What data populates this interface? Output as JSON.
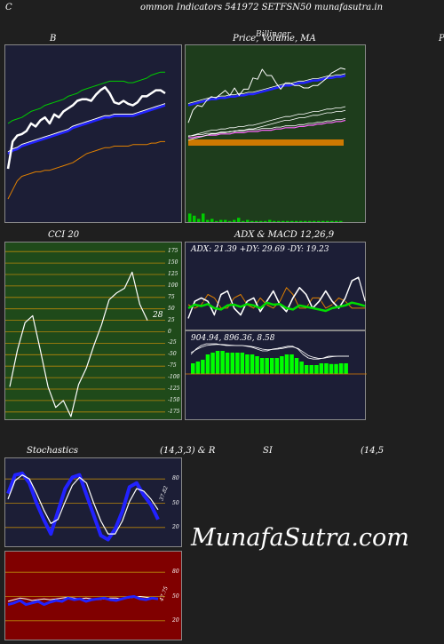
{
  "header": {
    "left": "C",
    "title": "ommon  Indicators 541972  SETFSN50  munafasutra.in"
  },
  "panels": {
    "bollinger": {
      "title": "B"
    },
    "price": {
      "title": "Price,  Volume,  MA",
      "overlay": "Billinger",
      "right_edge": "P"
    },
    "cci": {
      "title": "CCI 20",
      "badge": "28"
    },
    "adx_macd": {
      "title": "ADX  & MACD 12,26,9",
      "adx_label": "ADX: 21.39  +DY: 29.69 -DY: 19.23",
      "macd_label": "904.94,  896.36,  8.58"
    },
    "stoch": {
      "title_left": "Stochastics",
      "title_mid": "(14,3,3) & R",
      "badge": "37.82"
    },
    "rsi": {
      "title": "SI",
      "params": "(14,5",
      "badge": "47.75"
    }
  },
  "watermark": "MunafaSutra.com",
  "colors": {
    "panel_navy": "#1c1e36",
    "panel_green": "#1e3d1c",
    "panel_cci": "#1f4a1a",
    "panel_red": "#800000",
    "orange": "#e08000",
    "blue": "#2222ff",
    "green": "#00cc00"
  },
  "chart_data": [
    {
      "type": "line",
      "name": "Bollinger",
      "series": [
        {
          "name": "upper",
          "values": [
            60,
            62,
            63,
            64,
            66,
            68,
            69,
            70,
            72,
            73,
            74,
            75,
            76,
            78,
            79,
            80,
            82,
            83,
            84,
            85,
            86,
            87,
            88,
            88,
            88,
            88,
            87,
            87,
            88,
            89,
            90,
            92,
            93,
            94,
            94
          ]
        },
        {
          "name": "middle",
          "values": [
            40,
            42,
            43,
            45,
            46,
            47,
            48,
            49,
            50,
            51,
            52,
            53,
            54,
            55,
            57,
            58,
            59,
            60,
            61,
            62,
            63,
            64,
            64,
            65,
            65,
            65,
            65,
            65,
            66,
            67,
            68,
            69,
            70,
            71,
            72
          ]
        },
        {
          "name": "lower",
          "values": [
            10,
            16,
            22,
            25,
            26,
            27,
            28,
            28,
            29,
            29,
            30,
            31,
            32,
            33,
            34,
            36,
            38,
            40,
            41,
            42,
            43,
            44,
            44,
            45,
            45,
            45,
            45,
            46,
            46,
            46,
            46,
            47,
            47,
            48,
            48
          ]
        },
        {
          "name": "price",
          "values": [
            30,
            48,
            52,
            53,
            55,
            60,
            58,
            62,
            64,
            60,
            66,
            64,
            68,
            70,
            72,
            75,
            76,
            76,
            75,
            79,
            82,
            84,
            80,
            74,
            73,
            75,
            73,
            72,
            74,
            78,
            78,
            80,
            82,
            82,
            80
          ]
        }
      ],
      "ylim": [
        0,
        100
      ]
    },
    {
      "type": "line",
      "name": "Price, Volume, MA",
      "series": [
        {
          "name": "price",
          "values": [
            52,
            62,
            66,
            65,
            70,
            73,
            72,
            75,
            78,
            74,
            80,
            74,
            79,
            79,
            88,
            87,
            95,
            90,
            90,
            84,
            79,
            84,
            84,
            82,
            82,
            80,
            80,
            82,
            82,
            85,
            88,
            92,
            94,
            96,
            95
          ]
        },
        {
          "name": "ma_short",
          "values": [
            66,
            67,
            68,
            69,
            70,
            71,
            71,
            72,
            72,
            73,
            73,
            74,
            74,
            75,
            75,
            76,
            77,
            78,
            79,
            80,
            81,
            82,
            82,
            83,
            84,
            84,
            85,
            86,
            86,
            87,
            88,
            88,
            89,
            89,
            90
          ]
        },
        {
          "name": "ma_mid",
          "values": [
            71,
            71,
            72,
            72,
            73,
            73,
            73,
            73,
            73,
            73,
            73,
            73,
            73,
            73,
            73,
            73,
            73,
            73,
            73,
            73,
            73,
            73,
            73,
            73,
            73,
            73,
            73,
            73,
            73,
            73,
            73,
            73,
            73,
            73,
            73
          ]
        },
        {
          "name": "ma_long",
          "values": [
            40,
            40,
            41,
            41,
            42,
            42,
            42,
            43,
            43,
            43,
            44,
            44,
            44,
            45,
            45,
            45,
            46,
            46,
            46,
            47,
            47,
            48,
            48,
            48,
            49,
            49,
            50,
            50,
            51,
            51,
            52,
            52,
            53,
            53,
            54
          ]
        },
        {
          "name": "volume",
          "values": [
            8,
            6,
            3,
            8,
            2,
            3,
            1,
            2,
            2,
            1,
            2,
            4,
            1,
            2,
            1,
            1,
            1,
            1,
            2,
            1,
            1,
            1,
            1,
            1,
            1,
            1,
            1,
            1,
            1,
            1,
            1,
            1,
            1,
            1,
            1
          ]
        }
      ],
      "ylim": [
        0,
        100
      ]
    },
    {
      "type": "line",
      "name": "CCI 20",
      "series": [
        {
          "name": "cci",
          "values": [
            -120,
            -40,
            20,
            35,
            -40,
            -120,
            -165,
            -150,
            -185,
            -115,
            -80,
            -30,
            15,
            70,
            85,
            95,
            130,
            60,
            25
          ]
        }
      ],
      "yticks": [
        175,
        150,
        125,
        100,
        75,
        50,
        25,
        0,
        -25,
        -50,
        -75,
        -100,
        -125,
        -150,
        -175
      ],
      "ylim": [
        -185,
        185
      ]
    },
    {
      "type": "line",
      "name": "ADX",
      "series": [
        {
          "name": "adx",
          "values": [
            30,
            35,
            33,
            36,
            30,
            28,
            34,
            35,
            32,
            36,
            34,
            30,
            38,
            35,
            36,
            30,
            28,
            34,
            32,
            30,
            28,
            26,
            30,
            32,
            34,
            38,
            36,
            33
          ]
        },
        {
          "name": "plus_di",
          "values": [
            15,
            40,
            45,
            40,
            20,
            50,
            55,
            30,
            20,
            40,
            45,
            25,
            40,
            55,
            35,
            25,
            45,
            60,
            50,
            30,
            40,
            55,
            40,
            30,
            45,
            70,
            75,
            40
          ]
        },
        {
          "name": "minus_di",
          "values": [
            35,
            30,
            35,
            50,
            45,
            30,
            30,
            45,
            50,
            35,
            30,
            45,
            35,
            30,
            40,
            60,
            50,
            30,
            30,
            45,
            45,
            30,
            35,
            45,
            40,
            30,
            30,
            30
          ]
        }
      ],
      "ylim": [
        0,
        100
      ]
    },
    {
      "type": "bar",
      "name": "MACD",
      "series": [
        {
          "name": "histogram",
          "values": [
            30,
            35,
            40,
            55,
            60,
            65,
            65,
            60,
            60,
            60,
            60,
            55,
            55,
            50,
            45,
            45,
            45,
            45,
            50,
            55,
            55,
            45,
            35,
            25,
            25,
            25,
            30,
            30,
            28,
            28,
            30,
            30
          ]
        },
        {
          "name": "macd",
          "values": [
            55,
            70,
            80,
            85,
            85,
            85,
            82,
            80,
            80,
            80,
            80,
            78,
            75,
            70,
            65,
            65,
            70,
            72,
            75,
            78,
            78,
            70,
            55,
            45,
            42,
            42,
            45,
            50,
            50,
            50,
            50,
            50
          ]
        },
        {
          "name": "signal",
          "values": [
            60,
            68,
            75,
            80,
            82,
            83,
            83,
            82,
            81,
            80,
            80,
            79,
            77,
            74,
            70,
            68,
            69,
            70,
            72,
            75,
            76,
            72,
            62,
            52,
            47,
            44,
            44,
            47,
            49,
            50,
            50,
            50
          ]
        }
      ],
      "ylim": [
        0,
        100
      ]
    },
    {
      "type": "line",
      "name": "Stochastics",
      "series": [
        {
          "name": "k",
          "values": [
            62,
            85,
            87,
            75,
            50,
            30,
            12,
            40,
            68,
            82,
            85,
            60,
            35,
            10,
            5,
            18,
            40,
            70,
            75,
            60,
            48,
            30
          ]
        },
        {
          "name": "d",
          "values": [
            55,
            78,
            85,
            80,
            62,
            42,
            25,
            30,
            52,
            72,
            82,
            75,
            50,
            28,
            12,
            12,
            28,
            52,
            68,
            65,
            55,
            42
          ]
        }
      ],
      "yticks": [
        80,
        50,
        20
      ],
      "ylim": [
        0,
        100
      ]
    },
    {
      "type": "line",
      "name": "RSI",
      "series": [
        {
          "name": "rsi",
          "values": [
            40,
            42,
            45,
            40,
            42,
            44,
            40,
            43,
            45,
            44,
            48,
            46,
            47,
            44,
            46,
            47,
            48,
            46,
            45,
            47,
            49,
            50,
            47,
            46,
            48,
            47
          ]
        },
        {
          "name": "mfi",
          "values": [
            44,
            46,
            48,
            47,
            45,
            46,
            47,
            46,
            47,
            48,
            49,
            48,
            47,
            48,
            47,
            46,
            47,
            48,
            48,
            47,
            48,
            49,
            50,
            49,
            48,
            47
          ]
        }
      ],
      "yticks": [
        80,
        50,
        20
      ],
      "ylim": [
        0,
        100
      ]
    }
  ]
}
